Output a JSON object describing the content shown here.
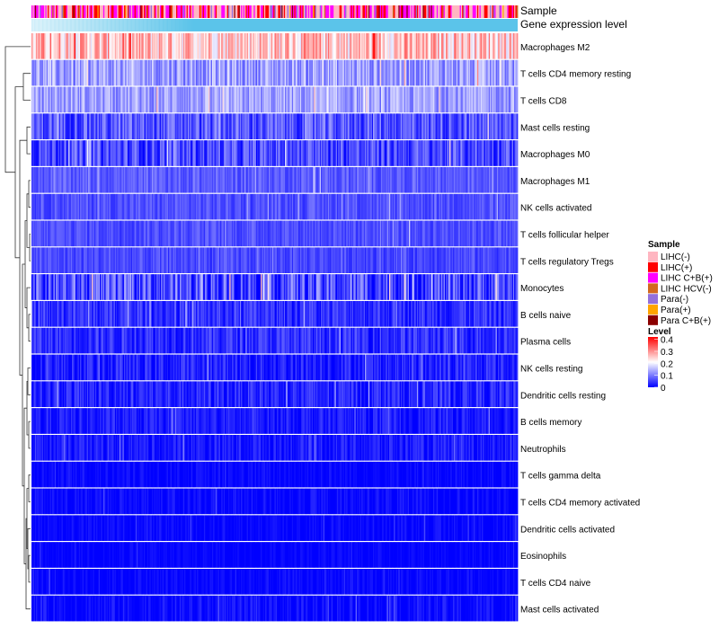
{
  "chart_data": {
    "type": "heatmap",
    "annotations": [
      {
        "label": "Sample"
      },
      {
        "label": "Gene expression level"
      }
    ],
    "rows": [
      {
        "name": "Macrophages M2",
        "mean": 0.26,
        "spread": 0.08
      },
      {
        "name": "T cells CD4 memory resting",
        "mean": 0.13,
        "spread": 0.06
      },
      {
        "name": "T cells CD8",
        "mean": 0.13,
        "spread": 0.05
      },
      {
        "name": "Mast cells resting",
        "mean": 0.07,
        "spread": 0.06
      },
      {
        "name": "Macrophages M0",
        "mean": 0.06,
        "spread": 0.06
      },
      {
        "name": "Macrophages M1",
        "mean": 0.075,
        "spread": 0.03
      },
      {
        "name": "NK cells activated",
        "mean": 0.065,
        "spread": 0.03
      },
      {
        "name": "T cells follicular helper",
        "mean": 0.065,
        "spread": 0.03
      },
      {
        "name": "T cells regulatory  Tregs",
        "mean": 0.06,
        "spread": 0.03
      },
      {
        "name": "Monocytes",
        "mean": 0.06,
        "spread": 0.08
      },
      {
        "name": "B cells naive",
        "mean": 0.04,
        "spread": 0.04
      },
      {
        "name": "Plasma cells",
        "mean": 0.04,
        "spread": 0.04
      },
      {
        "name": "NK cells resting",
        "mean": 0.025,
        "spread": 0.04
      },
      {
        "name": "Dendritic cells resting",
        "mean": 0.03,
        "spread": 0.04
      },
      {
        "name": "B cells memory",
        "mean": 0.02,
        "spread": 0.03
      },
      {
        "name": "Neutrophils",
        "mean": 0.02,
        "spread": 0.03
      },
      {
        "name": "T cells gamma delta",
        "mean": 0.005,
        "spread": 0.02
      },
      {
        "name": "T cells CD4 memory activated",
        "mean": 0.005,
        "spread": 0.025
      },
      {
        "name": "Dendritic cells activated",
        "mean": 0.004,
        "spread": 0.02
      },
      {
        "name": "Eosinophils",
        "mean": 0.003,
        "spread": 0.015
      },
      {
        "name": "T cells CD4 naive",
        "mean": 0.004,
        "spread": 0.02
      },
      {
        "name": "Mast cells activated",
        "mean": 0.006,
        "spread": 0.03
      }
    ],
    "legend": {
      "sample_title": "Sample",
      "sample_items": [
        {
          "label": "LIHC(-)",
          "color": "#ffb6c1"
        },
        {
          "label": "LIHC(+)",
          "color": "#ff0000"
        },
        {
          "label": "LIHC C+B(+)",
          "color": "#ff00ff"
        },
        {
          "label": "LIHC HCV(-)",
          "color": "#d2691e"
        },
        {
          "label": "Para(-)",
          "color": "#9370db"
        },
        {
          "label": "Para(+)",
          "color": "#ffa500"
        },
        {
          "label": "Para C+B(+)",
          "color": "#8b0000"
        }
      ],
      "level_title": "Level",
      "level_ticks": [
        "0.4",
        "0.3",
        "0.2",
        "0.1",
        "0"
      ],
      "level_values": [
        0.4,
        0.3,
        0.2,
        0.1,
        0
      ],
      "level_range": [
        0,
        0.42
      ]
    },
    "colors": {
      "low": "#0000ff",
      "mid": "#ffffff",
      "high": "#ff0000",
      "expression_annotation": "#5bc4ea"
    },
    "legend_position": "right"
  }
}
